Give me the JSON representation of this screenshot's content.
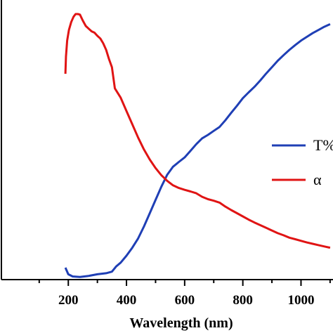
{
  "chart_data": {
    "type": "line",
    "xlabel": "Wavelength (nm)",
    "ylabel": "",
    "xlim": [
      -30,
      1110
    ],
    "ylim": [
      0,
      1
    ],
    "x_ticks": [
      200,
      400,
      600,
      800,
      1000
    ],
    "x_minor_ticks": [
      100,
      300,
      500,
      700,
      900,
      1100
    ],
    "y_tick_labels_visible": false,
    "legend": {
      "position": "right",
      "entries": [
        "T%",
        "α"
      ]
    },
    "series": [
      {
        "name": "T%",
        "color": "#1f3fb5",
        "points": [
          [
            190,
            0.045
          ],
          [
            200,
            0.02
          ],
          [
            215,
            0.012
          ],
          [
            240,
            0.01
          ],
          [
            270,
            0.014
          ],
          [
            300,
            0.02
          ],
          [
            330,
            0.024
          ],
          [
            350,
            0.03
          ],
          [
            365,
            0.05
          ],
          [
            380,
            0.064
          ],
          [
            400,
            0.09
          ],
          [
            420,
            0.12
          ],
          [
            440,
            0.155
          ],
          [
            460,
            0.2
          ],
          [
            480,
            0.25
          ],
          [
            500,
            0.3
          ],
          [
            520,
            0.35
          ],
          [
            540,
            0.395
          ],
          [
            560,
            0.425
          ],
          [
            580,
            0.443
          ],
          [
            600,
            0.46
          ],
          [
            620,
            0.485
          ],
          [
            640,
            0.51
          ],
          [
            660,
            0.532
          ],
          [
            680,
            0.545
          ],
          [
            700,
            0.56
          ],
          [
            720,
            0.575
          ],
          [
            740,
            0.6
          ],
          [
            760,
            0.628
          ],
          [
            780,
            0.655
          ],
          [
            800,
            0.683
          ],
          [
            820,
            0.705
          ],
          [
            840,
            0.726
          ],
          [
            860,
            0.75
          ],
          [
            880,
            0.776
          ],
          [
            900,
            0.8
          ],
          [
            920,
            0.824
          ],
          [
            940,
            0.845
          ],
          [
            960,
            0.865
          ],
          [
            980,
            0.883
          ],
          [
            1000,
            0.9
          ],
          [
            1020,
            0.914
          ],
          [
            1040,
            0.928
          ],
          [
            1060,
            0.94
          ],
          [
            1080,
            0.952
          ],
          [
            1100,
            0.962
          ]
        ]
      },
      {
        "name": "α",
        "color": "#e01414",
        "points": [
          [
            190,
            0.775
          ],
          [
            192,
            0.84
          ],
          [
            196,
            0.9
          ],
          [
            202,
            0.94
          ],
          [
            210,
            0.97
          ],
          [
            218,
            0.99
          ],
          [
            225,
            1.0
          ],
          [
            233,
            1.0
          ],
          [
            240,
            0.998
          ],
          [
            250,
            0.975
          ],
          [
            260,
            0.955
          ],
          [
            270,
            0.945
          ],
          [
            280,
            0.935
          ],
          [
            290,
            0.93
          ],
          [
            300,
            0.918
          ],
          [
            310,
            0.908
          ],
          [
            320,
            0.89
          ],
          [
            330,
            0.865
          ],
          [
            340,
            0.83
          ],
          [
            350,
            0.8
          ],
          [
            360,
            0.72
          ],
          [
            380,
            0.685
          ],
          [
            400,
            0.635
          ],
          [
            420,
            0.585
          ],
          [
            440,
            0.535
          ],
          [
            460,
            0.49
          ],
          [
            480,
            0.452
          ],
          [
            500,
            0.42
          ],
          [
            520,
            0.393
          ],
          [
            540,
            0.372
          ],
          [
            560,
            0.355
          ],
          [
            580,
            0.345
          ],
          [
            600,
            0.338
          ],
          [
            620,
            0.332
          ],
          [
            640,
            0.325
          ],
          [
            660,
            0.312
          ],
          [
            680,
            0.303
          ],
          [
            700,
            0.297
          ],
          [
            720,
            0.29
          ],
          [
            740,
            0.275
          ],
          [
            760,
            0.262
          ],
          [
            780,
            0.25
          ],
          [
            800,
            0.238
          ],
          [
            820,
            0.226
          ],
          [
            840,
            0.215
          ],
          [
            860,
            0.205
          ],
          [
            880,
            0.195
          ],
          [
            900,
            0.185
          ],
          [
            920,
            0.175
          ],
          [
            940,
            0.167
          ],
          [
            960,
            0.158
          ],
          [
            980,
            0.152
          ],
          [
            1000,
            0.146
          ],
          [
            1020,
            0.14
          ],
          [
            1040,
            0.135
          ],
          [
            1060,
            0.13
          ],
          [
            1080,
            0.125
          ],
          [
            1100,
            0.12
          ]
        ]
      }
    ]
  }
}
